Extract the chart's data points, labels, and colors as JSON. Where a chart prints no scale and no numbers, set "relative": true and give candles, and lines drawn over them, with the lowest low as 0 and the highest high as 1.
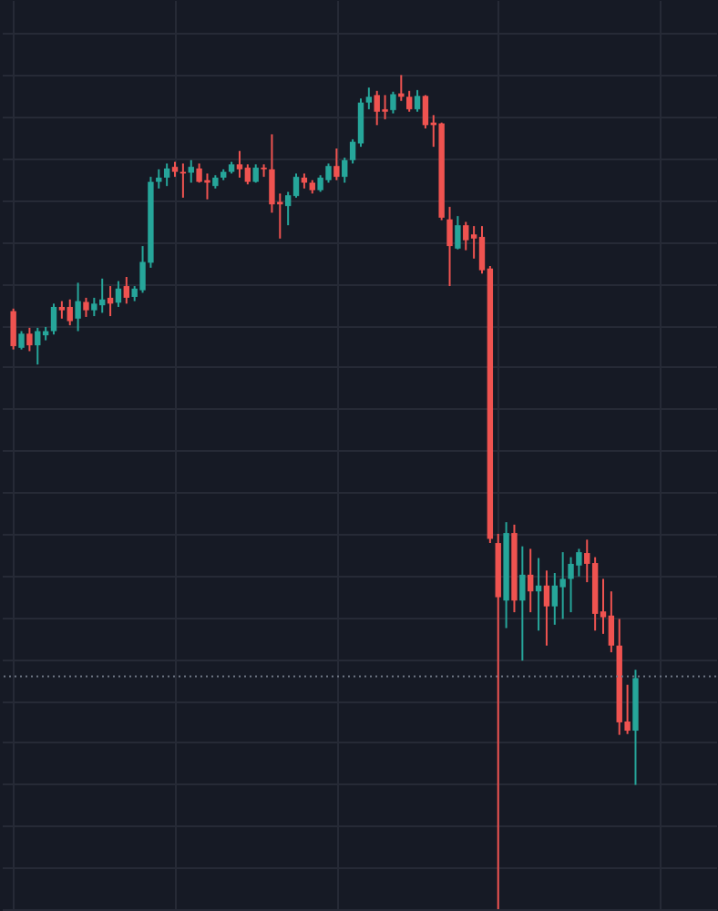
{
  "chart_data": {
    "type": "candlestick",
    "relative": true,
    "grid": true,
    "categories": [
      null,
      null,
      null,
      null,
      null,
      null,
      null,
      null,
      null,
      null,
      null,
      null,
      null,
      null,
      null,
      null,
      null,
      null,
      null,
      null,
      null,
      null,
      null,
      null,
      null,
      null,
      null,
      null,
      null,
      null,
      null,
      null,
      null,
      null,
      null,
      null,
      null,
      null,
      null,
      null,
      null,
      null,
      null,
      null,
      null,
      null,
      null,
      null,
      null,
      null,
      null,
      null,
      null,
      null,
      null,
      null,
      null,
      null,
      null,
      null,
      null,
      null,
      null,
      null,
      null,
      null,
      null,
      null,
      null,
      null,
      null,
      null,
      null,
      null,
      null,
      null,
      null,
      null
    ],
    "ohlc": [
      [
        0.717,
        0.72,
        0.671,
        0.675
      ],
      [
        0.673,
        0.693,
        0.671,
        0.69
      ],
      [
        0.69,
        0.697,
        0.669,
        0.676
      ],
      [
        0.676,
        0.697,
        0.653,
        0.693
      ],
      [
        0.688,
        0.698,
        0.682,
        0.693
      ],
      [
        0.693,
        0.726,
        0.689,
        0.722
      ],
      [
        0.722,
        0.729,
        0.708,
        0.718
      ],
      [
        0.722,
        0.731,
        0.7,
        0.705
      ],
      [
        0.708,
        0.751,
        0.693,
        0.729
      ],
      [
        0.728,
        0.733,
        0.71,
        0.718
      ],
      [
        0.718,
        0.733,
        0.711,
        0.726
      ],
      [
        0.724,
        0.756,
        0.715,
        0.731
      ],
      [
        0.733,
        0.747,
        0.711,
        0.726
      ],
      [
        0.727,
        0.753,
        0.722,
        0.744
      ],
      [
        0.747,
        0.758,
        0.726,
        0.733
      ],
      [
        0.734,
        0.747,
        0.729,
        0.744
      ],
      [
        0.742,
        0.795,
        0.739,
        0.776
      ],
      [
        0.775,
        0.878,
        0.769,
        0.872
      ],
      [
        0.872,
        0.887,
        0.864,
        0.877
      ],
      [
        0.877,
        0.894,
        0.867,
        0.888
      ],
      [
        0.89,
        0.896,
        0.878,
        0.884
      ],
      [
        0.884,
        0.894,
        0.853,
        0.882
      ],
      [
        0.883,
        0.898,
        0.871,
        0.89
      ],
      [
        0.888,
        0.894,
        0.871,
        0.872
      ],
      [
        0.874,
        0.882,
        0.851,
        0.871
      ],
      [
        0.867,
        0.88,
        0.864,
        0.877
      ],
      [
        0.877,
        0.887,
        0.874,
        0.884
      ],
      [
        0.884,
        0.896,
        0.882,
        0.893
      ],
      [
        0.893,
        0.909,
        0.877,
        0.887
      ],
      [
        0.889,
        0.893,
        0.869,
        0.872
      ],
      [
        0.872,
        0.893,
        0.871,
        0.889
      ],
      [
        0.889,
        0.893,
        0.878,
        0.887
      ],
      [
        0.887,
        0.929,
        0.835,
        0.845
      ],
      [
        0.848,
        0.858,
        0.804,
        0.845
      ],
      [
        0.843,
        0.86,
        0.82,
        0.856
      ],
      [
        0.855,
        0.882,
        0.853,
        0.878
      ],
      [
        0.877,
        0.882,
        0.864,
        0.871
      ],
      [
        0.871,
        0.874,
        0.858,
        0.862
      ],
      [
        0.862,
        0.88,
        0.86,
        0.877
      ],
      [
        0.874,
        0.894,
        0.871,
        0.891
      ],
      [
        0.891,
        0.912,
        0.874,
        0.878
      ],
      [
        0.878,
        0.901,
        0.871,
        0.898
      ],
      [
        0.898,
        0.923,
        0.894,
        0.92
      ],
      [
        0.918,
        0.972,
        0.914,
        0.967
      ],
      [
        0.967,
        0.985,
        0.959,
        0.974
      ],
      [
        0.976,
        0.981,
        0.94,
        0.956
      ],
      [
        0.959,
        0.976,
        0.947,
        0.956
      ],
      [
        0.958,
        0.98,
        0.954,
        0.977
      ],
      [
        0.978,
        1.0,
        0.969,
        0.974
      ],
      [
        0.974,
        0.981,
        0.956,
        0.959
      ],
      [
        0.959,
        0.982,
        0.956,
        0.975
      ],
      [
        0.975,
        0.976,
        0.936,
        0.94
      ],
      [
        0.943,
        0.952,
        0.914,
        0.94
      ],
      [
        0.942,
        0.943,
        0.826,
        0.829
      ],
      [
        0.827,
        0.842,
        0.747,
        0.795
      ],
      [
        0.792,
        0.831,
        0.791,
        0.82
      ],
      [
        0.82,
        0.824,
        0.79,
        0.802
      ],
      [
        0.809,
        0.819,
        0.78,
        0.804
      ],
      [
        0.806,
        0.819,
        0.762,
        0.766
      ],
      [
        0.768,
        0.771,
        0.439,
        0.444
      ],
      [
        0.439,
        0.45,
        0,
        0.374
      ],
      [
        0.37,
        0.464,
        0.337,
        0.451
      ],
      [
        0.451,
        0.461,
        0.356,
        0.37
      ],
      [
        0.37,
        0.435,
        0.298,
        0.401
      ],
      [
        0.401,
        0.432,
        0.356,
        0.381
      ],
      [
        0.381,
        0.421,
        0.334,
        0.388
      ],
      [
        0.388,
        0.406,
        0.316,
        0.363
      ],
      [
        0.363,
        0.403,
        0.341,
        0.388
      ],
      [
        0.386,
        0.428,
        0.348,
        0.396
      ],
      [
        0.396,
        0.422,
        0.356,
        0.414
      ],
      [
        0.412,
        0.432,
        0.399,
        0.428
      ],
      [
        0.427,
        0.443,
        0.392,
        0.414
      ],
      [
        0.415,
        0.422,
        0.334,
        0.354
      ],
      [
        0.357,
        0.396,
        0.33,
        0.35
      ],
      [
        0.352,
        0.381,
        0.308,
        0.316
      ],
      [
        0.316,
        0.348,
        0.209,
        0.224
      ],
      [
        0.225,
        0.269,
        0.21,
        0.214
      ],
      [
        0.214,
        0.287,
        0.149,
        0.277
      ]
    ],
    "colors": [
      "#ef5350",
      "#26a69a",
      "#ef5350",
      "#26a69a",
      "#26a69a",
      "#26a69a",
      "#ef5350",
      "#ef5350",
      "#26a69a",
      "#ef5350",
      "#26a69a",
      "#26a69a",
      "#ef5350",
      "#26a69a",
      "#ef5350",
      "#26a69a",
      "#26a69a",
      "#26a69a",
      "#26a69a",
      "#26a69a",
      "#ef5350",
      "#ef5350",
      "#26a69a",
      "#ef5350",
      "#ef5350",
      "#26a69a",
      "#26a69a",
      "#26a69a",
      "#ef5350",
      "#ef5350",
      "#26a69a",
      "#ef5350",
      "#ef5350",
      "#ef5350",
      "#26a69a",
      "#26a69a",
      "#ef5350",
      "#ef5350",
      "#26a69a",
      "#26a69a",
      "#ef5350",
      "#26a69a",
      "#26a69a",
      "#26a69a",
      "#26a69a",
      "#ef5350",
      "#ef5350",
      "#26a69a",
      "#ef5350",
      "#ef5350",
      "#26a69a",
      "#ef5350",
      "#ef5350",
      "#ef5350",
      "#ef5350",
      "#26a69a",
      "#ef5350",
      "#ef5350",
      "#ef5350",
      "#ef5350",
      "#ef5350",
      "#26a69a",
      "#ef5350",
      "#26a69a",
      "#ef5350",
      "#26a69a",
      "#ef5350",
      "#26a69a",
      "#26a69a",
      "#26a69a",
      "#26a69a",
      "#ef5350",
      "#ef5350",
      "#ef5350",
      "#ef5350",
      "#ef5350",
      "#ef5350",
      "#26a69a"
    ],
    "ref_lines": [
      {
        "axis": "y",
        "value": 0.279,
        "color": "#6b7280",
        "line_style": "dotted"
      }
    ]
  }
}
